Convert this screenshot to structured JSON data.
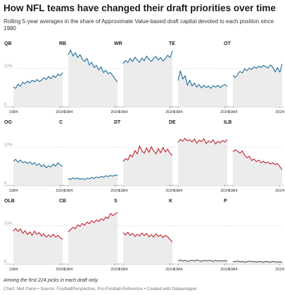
{
  "title": "How NFL teams have changed their draft priorities over time",
  "subtitle": "Rolling 5-year averages in the share of Approximate Value-based draft capital devoted to each position since 1980",
  "note": "Among the first 224 picks in each draft only.",
  "credit": "Chart: Neil Paine • Source: FootballPerspective, Pro-Football-Reference • Created with Datawrapper",
  "colors": {
    "blue": "#1f6e9c",
    "red": "#c0232c",
    "gray": "#555555",
    "area": "#ececec",
    "grid": "#d6d6d6"
  },
  "chart_data": {
    "type": "area",
    "x": [
      1984,
      1986,
      1988,
      1990,
      1992,
      1994,
      1996,
      1998,
      2000,
      2002,
      2004,
      2006,
      2008,
      2010,
      2012,
      2014,
      2016,
      2018,
      2020,
      2022,
      2024,
      2026
    ],
    "x_tick_labels": [
      "1984",
      "2024"
    ],
    "ylim": [
      0,
      15
    ],
    "y_tick_labels": [
      "0",
      "10%"
    ],
    "y_tick_values": [
      0,
      10
    ],
    "series": [
      {
        "name": "QB",
        "color": "blue",
        "values": [
          5.2,
          4.8,
          5.9,
          5.3,
          6.4,
          6.0,
          6.7,
          6.2,
          6.9,
          6.5,
          7.1,
          6.6,
          6.9,
          7.6,
          7.1,
          7.9,
          7.3,
          8.1,
          7.6,
          8.5,
          8.1,
          8.9
        ]
      },
      {
        "name": "RB",
        "color": "blue",
        "values": [
          13.5,
          14.8,
          13.2,
          14.1,
          12.8,
          13.6,
          12.4,
          11.8,
          12.6,
          10.9,
          11.6,
          10.2,
          10.8,
          9.6,
          10.4,
          8.9,
          9.5,
          8.6,
          8.9,
          8.1,
          7.2,
          6.4
        ]
      },
      {
        "name": "WR",
        "color": "blue",
        "values": [
          11.2,
          12.1,
          11.5,
          12.6,
          11.8,
          12.9,
          12.2,
          11.6,
          12.7,
          12.0,
          13.2,
          12.4,
          11.8,
          12.6,
          13.1,
          12.2,
          12.8,
          11.9,
          12.6,
          13.4,
          12.8,
          14.6
        ]
      },
      {
        "name": "TE",
        "color": "blue",
        "values": [
          6.8,
          9.4,
          7.2,
          8.1,
          5.6,
          6.9,
          5.4,
          6.2,
          5.1,
          5.8,
          4.9,
          5.6,
          5.0,
          5.4,
          4.8,
          5.5,
          5.1,
          5.6,
          5.0,
          5.5,
          5.8,
          5.3
        ]
      },
      {
        "name": "OT",
        "color": "blue",
        "values": [
          8.2,
          7.6,
          8.5,
          9.2,
          8.8,
          9.9,
          9.4,
          10.1,
          9.7,
          10.4,
          10.0,
          10.6,
          10.2,
          10.8,
          10.4,
          10.1,
          10.9,
          10.3,
          9.1,
          10.2,
          9.0,
          11.2
        ]
      },
      {
        "name": "OG",
        "color": "blue",
        "values": [
          6.3,
          6.8,
          6.0,
          6.6,
          5.9,
          6.2,
          5.7,
          6.1,
          5.5,
          5.9,
          5.2,
          5.7,
          4.9,
          5.4,
          4.6,
          5.1,
          4.8,
          5.6,
          5.0,
          5.9,
          5.3,
          5.0
        ]
      },
      {
        "name": "C",
        "color": "blue",
        "values": [
          1.8,
          1.6,
          2.0,
          1.7,
          1.9,
          1.6,
          1.8,
          1.5,
          1.9,
          1.7,
          2.1,
          1.8,
          2.2,
          2.0,
          2.4,
          2.1,
          2.5,
          2.3,
          2.6,
          2.4,
          2.7,
          2.6
        ]
      },
      {
        "name": "DT",
        "color": "red",
        "values": [
          6.2,
          7.0,
          6.6,
          8.0,
          7.4,
          9.1,
          8.2,
          10.3,
          9.0,
          8.4,
          9.8,
          8.6,
          10.1,
          9.0,
          8.2,
          9.6,
          8.5,
          9.9,
          8.7,
          9.5,
          8.3,
          7.8
        ]
      },
      {
        "name": "DE",
        "color": "red",
        "values": [
          11.2,
          12.0,
          11.5,
          12.3,
          11.6,
          11.9,
          11.3,
          12.1,
          11.0,
          11.8,
          11.4,
          12.2,
          10.9,
          11.6,
          11.2,
          11.9,
          10.8,
          11.5,
          11.1,
          11.7,
          11.3,
          12.0
        ]
      },
      {
        "name": "ILB",
        "color": "red",
        "values": [
          8.8,
          9.3,
          8.9,
          8.4,
          9.0,
          7.8,
          7.2,
          7.6,
          6.5,
          6.9,
          6.2,
          6.6,
          5.9,
          6.3,
          5.8,
          6.1,
          5.6,
          5.9,
          5.4,
          5.7,
          4.9,
          4.1
        ]
      },
      {
        "name": "OLB",
        "color": "red",
        "values": [
          8.6,
          9.3,
          8.5,
          9.2,
          8.0,
          8.7,
          7.7,
          8.4,
          7.5,
          8.6,
          7.8,
          8.2,
          7.3,
          7.9,
          7.0,
          7.6,
          7.1,
          7.8,
          7.0,
          7.5,
          6.8,
          6.5
        ]
      },
      {
        "name": "CB",
        "color": "red",
        "values": [
          8.4,
          9.0,
          9.6,
          9.2,
          10.2,
          9.8,
          10.6,
          10.1,
          11.0,
          10.5,
          11.3,
          10.8,
          11.5,
          11.1,
          11.8,
          11.4,
          12.3,
          11.9,
          13.2,
          12.6,
          13.1,
          13.4
        ]
      },
      {
        "name": "S",
        "color": "red",
        "values": [
          8.2,
          7.6,
          8.3,
          7.5,
          8.0,
          7.2,
          7.8,
          7.3,
          8.1,
          7.4,
          8.0,
          7.1,
          7.7,
          7.0,
          7.9,
          7.2,
          7.6,
          6.9,
          7.5,
          7.1,
          6.4,
          5.7
        ]
      },
      {
        "name": "K",
        "color": "gray",
        "values": [
          0.9,
          1.1,
          0.8,
          1.0,
          0.7,
          0.9,
          1.0,
          0.8,
          1.1,
          0.9,
          0.7,
          1.0,
          0.8,
          1.0,
          0.9,
          0.7,
          1.0,
          0.8,
          0.9,
          0.8,
          0.9,
          0.8
        ]
      },
      {
        "name": "P",
        "color": "gray",
        "values": [
          0.7,
          0.6,
          0.8,
          0.6,
          0.7,
          0.5,
          0.6,
          0.8,
          0.6,
          0.7,
          0.5,
          0.7,
          0.6,
          0.5,
          0.7,
          0.6,
          0.5,
          0.7,
          0.6,
          0.5,
          0.6,
          0.5
        ]
      }
    ]
  }
}
